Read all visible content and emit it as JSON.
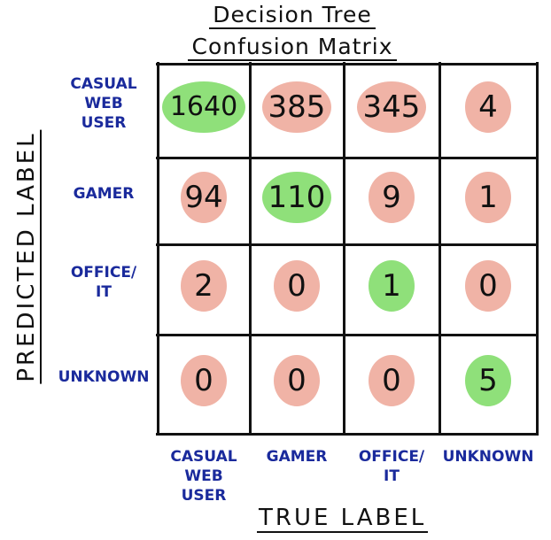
{
  "header": {
    "title_line1": "Decision Tree",
    "title_line2": "Confusion Matrix"
  },
  "chart_data": {
    "type": "heatmap",
    "title": "Decision Tree Confusion Matrix",
    "xlabel": "TRUE LABEL",
    "ylabel": "PREDICTED LABEL",
    "x_categories": [
      "CASUAL\nWEB\nUSER",
      "GAMER",
      "OFFICE/\nIT",
      "UNKNOWN"
    ],
    "y_categories": [
      "CASUAL\nWEB\nUSER",
      "GAMER",
      "OFFICE/\nIT",
      "UNKNOWN"
    ],
    "values": [
      [
        1640,
        385,
        345,
        4
      ],
      [
        94,
        110,
        9,
        1
      ],
      [
        2,
        0,
        1,
        0
      ],
      [
        0,
        0,
        0,
        5
      ]
    ],
    "colors": {
      "correct": "#8fe07a",
      "incorrect": "#f0b3a6",
      "grid": "#111111",
      "label": "#1a2a9c"
    }
  }
}
